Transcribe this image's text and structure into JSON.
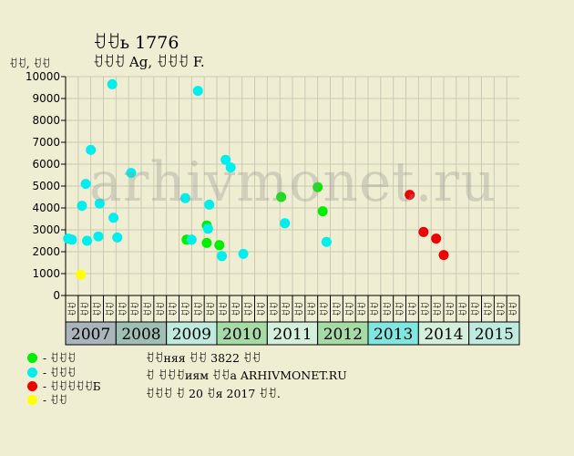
{
  "header": {
    "title": "ꀀꀀь 1776",
    "subtitle": "ꀀꀀꀀ Ag, ꀀꀀꀀ F.",
    "ylabel": "ꀀꀀ, ꀀꀀ"
  },
  "watermark": "arhivmonet.ru",
  "legend": [
    {
      "color": "#00ee00",
      "label": "- ꀀꀀꀀ"
    },
    {
      "color": "#00eeee",
      "label": "- ꀀꀀꀀ"
    },
    {
      "color": "#ee0000",
      "label": "- ꀀꀀꀀꀀꀀБ"
    },
    {
      "color": "#ffff00",
      "label": "- ꀀꀀ"
    }
  ],
  "info": {
    "line1": "ꀀꀀняя ꀀꀀ 3822 ꀀꀀ",
    "line2": "ꀀ ꀀꀀꀀиям ꀀꀀа ARHIVMONET.RU",
    "line3": "ꀀꀀꀀ ꀀ 20 ꀀя 2017 ꀀꀀ."
  },
  "chart_data": {
    "type": "scatter",
    "ylim": [
      0,
      10000
    ],
    "yticks": [
      0,
      1000,
      2000,
      3000,
      4000,
      5000,
      6000,
      7000,
      8000,
      9000,
      10000
    ],
    "grid": true,
    "quarter_labels": [
      "ꀀꀀ",
      "ꀀꀀ",
      "ꀀꀀ",
      "ꀀꀀ"
    ],
    "years": [
      {
        "label": "2007",
        "color": "#a9b5bb"
      },
      {
        "label": "2008",
        "color": "#9fbfb4"
      },
      {
        "label": "2009",
        "color": "#bfeadf"
      },
      {
        "label": "2010",
        "color": "#a6dba6"
      },
      {
        "label": "2011",
        "color": "#d4f0dc"
      },
      {
        "label": "2012",
        "color": "#a6dba6"
      },
      {
        "label": "2013",
        "color": "#7fe6e0"
      },
      {
        "label": "2014",
        "color": "#d4f0dc"
      },
      {
        "label": "2015",
        "color": "#bfeadf"
      }
    ],
    "series": [
      {
        "color": "#00ee00",
        "points": [
          {
            "x": 9.6,
            "y": 2550
          },
          {
            "x": 11.2,
            "y": 3200
          },
          {
            "x": 11.2,
            "y": 2400
          },
          {
            "x": 12.2,
            "y": 2300
          },
          {
            "x": 17.1,
            "y": 4500
          },
          {
            "x": 20.0,
            "y": 4950
          },
          {
            "x": 20.4,
            "y": 3850
          }
        ]
      },
      {
        "color": "#00eeee",
        "points": [
          {
            "x": 0.2,
            "y": 2600
          },
          {
            "x": 0.5,
            "y": 2550
          },
          {
            "x": 1.3,
            "y": 4100
          },
          {
            "x": 1.6,
            "y": 5100
          },
          {
            "x": 1.7,
            "y": 2500
          },
          {
            "x": 2.0,
            "y": 6650
          },
          {
            "x": 2.6,
            "y": 2700
          },
          {
            "x": 2.7,
            "y": 4200
          },
          {
            "x": 3.7,
            "y": 9650
          },
          {
            "x": 3.8,
            "y": 3550
          },
          {
            "x": 4.1,
            "y": 2650
          },
          {
            "x": 5.2,
            "y": 5600
          },
          {
            "x": 9.5,
            "y": 4450
          },
          {
            "x": 10.0,
            "y": 2550
          },
          {
            "x": 10.5,
            "y": 9350
          },
          {
            "x": 11.3,
            "y": 3050
          },
          {
            "x": 11.4,
            "y": 4150
          },
          {
            "x": 12.4,
            "y": 1800
          },
          {
            "x": 12.7,
            "y": 6200
          },
          {
            "x": 13.1,
            "y": 5850
          },
          {
            "x": 14.1,
            "y": 1900
          },
          {
            "x": 17.4,
            "y": 3300
          },
          {
            "x": 20.7,
            "y": 2450
          }
        ]
      },
      {
        "color": "#ee0000",
        "points": [
          {
            "x": 27.3,
            "y": 4600
          },
          {
            "x": 28.4,
            "y": 2900
          },
          {
            "x": 29.4,
            "y": 2600
          },
          {
            "x": 30.0,
            "y": 1850
          }
        ]
      },
      {
        "color": "#ffff00",
        "points": [
          {
            "x": 1.2,
            "y": 950
          }
        ]
      }
    ]
  }
}
